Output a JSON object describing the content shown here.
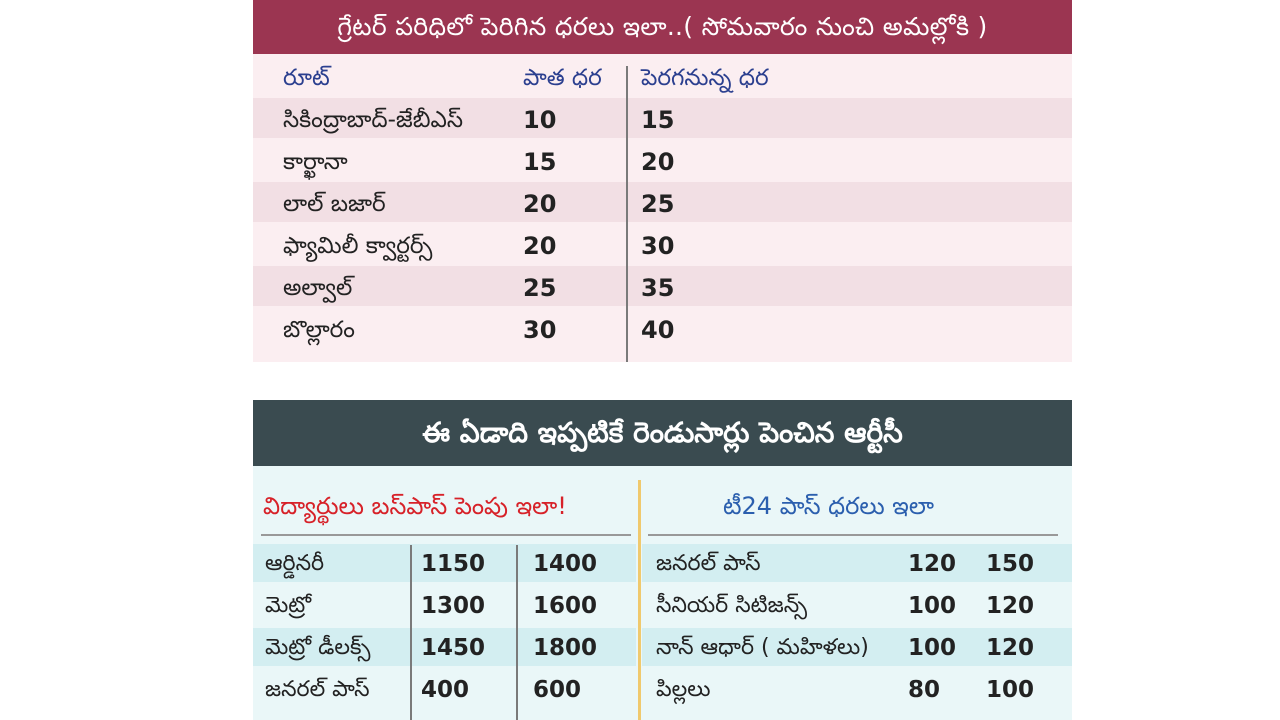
{
  "top_table": {
    "title": "గ్రేటర్ పరిధిలో పెరిగిన ధరలు ఇలా..( సోమవారం నుంచి అమల్లోకి )",
    "headers": {
      "route": "రూట్",
      "old_price": "పాత ధర",
      "new_price": "పెరగనున్న ధర"
    },
    "rows": [
      {
        "route": "సికింద్రాబాద్-జేబీఎస్",
        "old": "10",
        "new": "15"
      },
      {
        "route": "కార్ఖానా",
        "old": "15",
        "new": "20"
      },
      {
        "route": "లాల్ బజార్",
        "old": "20",
        "new": "25"
      },
      {
        "route": "ఫ్యామిలీ క్వార్టర్స్",
        "old": "20",
        "new": "30"
      },
      {
        "route": "అల్వాల్",
        "old": "25",
        "new": "35"
      },
      {
        "route": "బొల్లారం",
        "old": "30",
        "new": "40"
      }
    ]
  },
  "bottom_section": {
    "title": "ఈ ఏడాది ఇప్పటికే రెండుసార్లు పెంచిన ఆర్టీసీ",
    "student_pass": {
      "heading": "విద్యార్థులు బస్‌పాస్ పెంపు ఇలా!",
      "rows": [
        {
          "label": "ఆర్డినరీ",
          "old": "1150",
          "new": "1400"
        },
        {
          "label": "మెట్రో",
          "old": "1300",
          "new": "1600"
        },
        {
          "label": "మెట్రో డీలక్స్",
          "old": "1450",
          "new": "1800"
        },
        {
          "label": "జనరల్ పాస్",
          "old": "400",
          "new": "600"
        }
      ]
    },
    "t24_pass": {
      "heading": "టీ24 పాస్ ధరలు ఇలా",
      "rows": [
        {
          "label": "జనరల్ పాస్",
          "old": "120",
          "new": "150"
        },
        {
          "label": "సీనియర్ సిటిజన్స్",
          "old": "100",
          "new": "120"
        },
        {
          "label": "నాన్ ఆధార్ ( మహిళలు)",
          "old": "100",
          "new": "120"
        },
        {
          "label": "పిల్లలు",
          "old": "80",
          "new": "100"
        }
      ]
    }
  },
  "colors": {
    "top_title_bg": "#9b3551",
    "bottom_title_bg": "#3a4b50",
    "header_text": "#2b3f8f",
    "student_heading": "#d72229",
    "t24_heading": "#2b5fae"
  }
}
